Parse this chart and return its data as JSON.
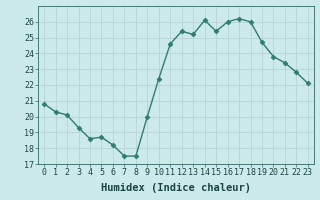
{
  "x": [
    0,
    1,
    2,
    3,
    4,
    5,
    6,
    7,
    8,
    9,
    10,
    11,
    12,
    13,
    14,
    15,
    16,
    17,
    18,
    19,
    20,
    21,
    22,
    23
  ],
  "y": [
    20.8,
    20.3,
    20.1,
    19.3,
    18.6,
    18.7,
    18.2,
    17.5,
    17.5,
    20.0,
    22.4,
    24.6,
    25.4,
    25.2,
    26.1,
    25.4,
    26.0,
    26.2,
    26.0,
    24.7,
    23.8,
    23.4,
    22.8,
    22.1
  ],
  "line_color": "#2e7d6e",
  "marker": "D",
  "marker_size": 2.5,
  "bg_color": "#cdeaea",
  "grid_color": "#b8d4d4",
  "xlabel": "Humidex (Indice chaleur)",
  "xlim": [
    -0.5,
    23.5
  ],
  "ylim": [
    17,
    27
  ],
  "yticks": [
    17,
    18,
    19,
    20,
    21,
    22,
    23,
    24,
    25,
    26
  ],
  "xticks": [
    0,
    1,
    2,
    3,
    4,
    5,
    6,
    7,
    8,
    9,
    10,
    11,
    12,
    13,
    14,
    15,
    16,
    17,
    18,
    19,
    20,
    21,
    22,
    23
  ],
  "tick_fontsize": 6,
  "xlabel_fontsize": 7.5,
  "linewidth": 1.0
}
